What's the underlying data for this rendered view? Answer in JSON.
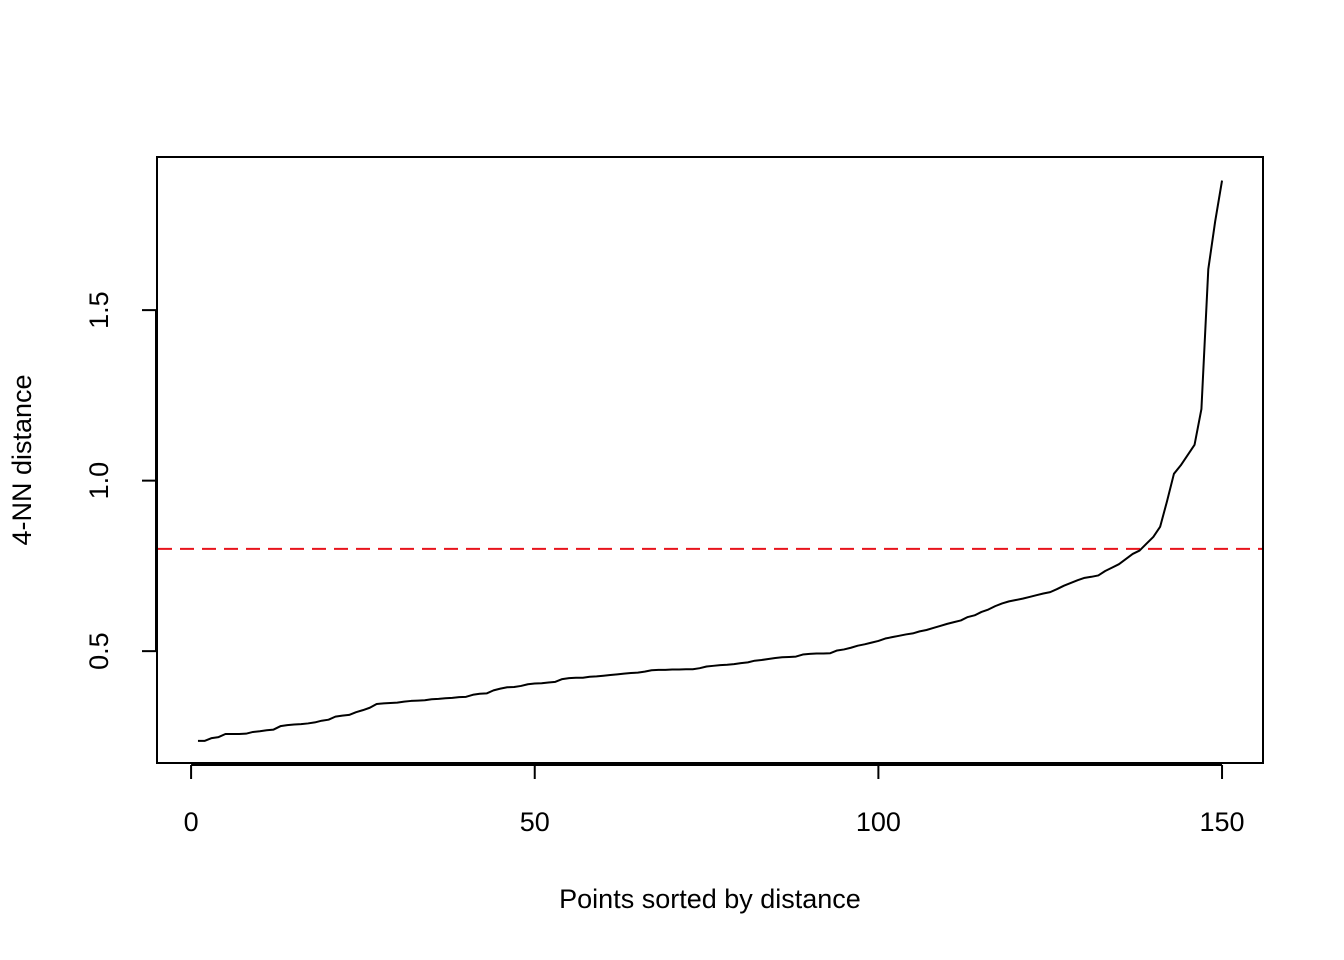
{
  "chart_data": {
    "type": "line",
    "xlabel": "Points sorted by distance",
    "ylabel": "4-NN distance",
    "x": [
      1,
      2,
      3,
      4,
      5,
      6,
      7,
      8,
      9,
      10,
      11,
      12,
      13,
      14,
      15,
      16,
      17,
      18,
      19,
      20,
      21,
      22,
      23,
      24,
      25,
      26,
      27,
      28,
      29,
      30,
      31,
      32,
      33,
      34,
      35,
      36,
      37,
      38,
      39,
      40,
      41,
      42,
      43,
      44,
      45,
      46,
      47,
      48,
      49,
      50,
      51,
      52,
      53,
      54,
      55,
      56,
      57,
      58,
      59,
      60,
      61,
      62,
      63,
      64,
      65,
      66,
      67,
      68,
      69,
      70,
      71,
      72,
      73,
      74,
      75,
      76,
      77,
      78,
      79,
      80,
      81,
      82,
      83,
      84,
      85,
      86,
      87,
      88,
      89,
      90,
      91,
      92,
      93,
      94,
      95,
      96,
      97,
      98,
      99,
      100,
      101,
      102,
      103,
      104,
      105,
      106,
      107,
      108,
      109,
      110,
      111,
      112,
      113,
      114,
      115,
      116,
      117,
      118,
      119,
      120,
      121,
      122,
      123,
      124,
      125,
      126,
      127,
      128,
      129,
      130,
      131,
      132,
      133,
      134,
      135,
      136,
      137,
      138,
      139,
      140,
      141,
      142,
      143,
      144,
      145,
      146,
      147,
      148,
      149,
      150
    ],
    "series": [
      {
        "color": "#000000",
        "values": [
          0.237,
          0.237,
          0.245,
          0.248,
          0.257,
          0.257,
          0.257,
          0.258,
          0.263,
          0.265,
          0.268,
          0.27,
          0.28,
          0.283,
          0.285,
          0.286,
          0.288,
          0.291,
          0.296,
          0.299,
          0.308,
          0.311,
          0.313,
          0.321,
          0.327,
          0.334,
          0.345,
          0.347,
          0.348,
          0.349,
          0.352,
          0.354,
          0.355,
          0.356,
          0.359,
          0.36,
          0.362,
          0.363,
          0.365,
          0.366,
          0.372,
          0.375,
          0.376,
          0.385,
          0.39,
          0.394,
          0.395,
          0.398,
          0.403,
          0.405,
          0.406,
          0.408,
          0.41,
          0.418,
          0.421,
          0.422,
          0.422,
          0.425,
          0.426,
          0.428,
          0.43,
          0.432,
          0.434,
          0.436,
          0.437,
          0.44,
          0.444,
          0.445,
          0.445,
          0.446,
          0.446,
          0.447,
          0.447,
          0.45,
          0.455,
          0.457,
          0.459,
          0.46,
          0.462,
          0.465,
          0.467,
          0.472,
          0.474,
          0.477,
          0.48,
          0.482,
          0.483,
          0.484,
          0.49,
          0.492,
          0.493,
          0.493,
          0.494,
          0.502,
          0.505,
          0.51,
          0.516,
          0.52,
          0.525,
          0.53,
          0.537,
          0.541,
          0.545,
          0.549,
          0.552,
          0.558,
          0.562,
          0.568,
          0.574,
          0.58,
          0.585,
          0.59,
          0.6,
          0.605,
          0.615,
          0.622,
          0.632,
          0.64,
          0.646,
          0.65,
          0.654,
          0.659,
          0.664,
          0.669,
          0.673,
          0.682,
          0.692,
          0.7,
          0.708,
          0.715,
          0.718,
          0.722,
          0.735,
          0.745,
          0.755,
          0.77,
          0.785,
          0.795,
          0.815,
          0.835,
          0.865,
          0.94,
          1.02,
          1.045,
          1.075,
          1.105,
          1.21,
          1.62,
          1.76,
          1.88
        ]
      }
    ],
    "reference_line": {
      "value": 0.8,
      "color": "#e8141c",
      "dashed": true
    },
    "xlim": [
      -4.96,
      155.96
    ],
    "ylim": [
      0.172,
      1.949
    ],
    "xticks": [
      0,
      50,
      100,
      150
    ],
    "yticks": [
      0.5,
      {
        "value": 1,
        "label": "1.0"
      },
      1.5
    ]
  }
}
